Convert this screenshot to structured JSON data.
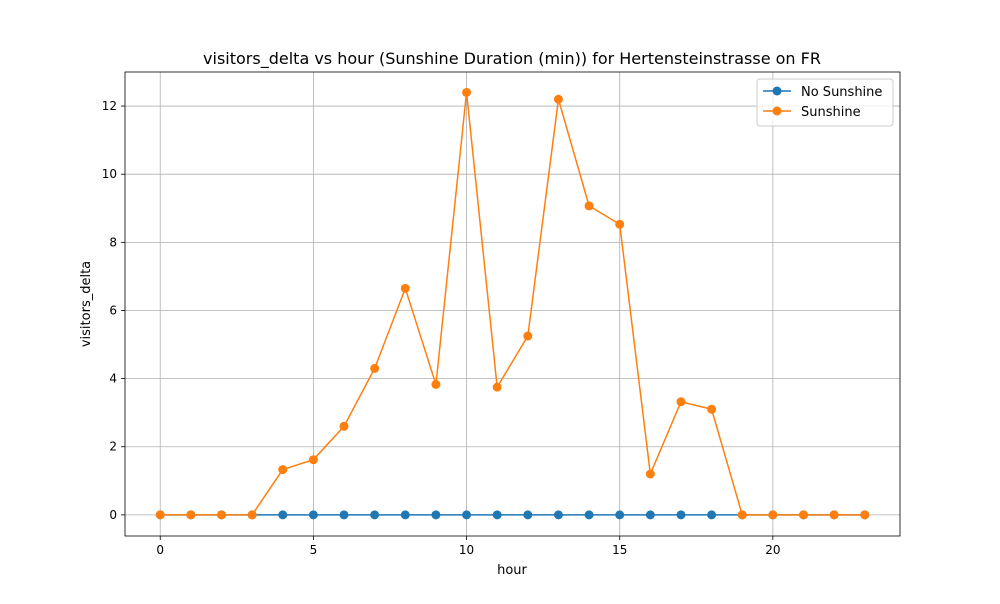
{
  "chart_data": {
    "type": "line",
    "title": "visitors_delta vs hour (Sunshine Duration (min)) for Hertensteinstrasse on FR",
    "xlabel": "hour",
    "ylabel": "visitors_delta",
    "xlim": [
      -1.15,
      24.15
    ],
    "ylim": [
      -0.62,
      13.0
    ],
    "xticks": [
      0,
      5,
      10,
      15,
      20
    ],
    "yticks": [
      0,
      2,
      4,
      6,
      8,
      10,
      12
    ],
    "grid": true,
    "legend_position": "top-right",
    "series": [
      {
        "name": "No Sunshine",
        "color": "#1f77b4",
        "x": [
          0,
          1,
          2,
          3,
          4,
          5,
          6,
          7,
          8,
          9,
          10,
          11,
          12,
          13,
          14,
          15,
          16,
          17,
          18,
          19,
          20,
          21,
          22,
          23
        ],
        "y": [
          0,
          0,
          0,
          0,
          0,
          0,
          0,
          0,
          0,
          0,
          0,
          0,
          0,
          0,
          0,
          0,
          0,
          0,
          0,
          0,
          0,
          0,
          0,
          0
        ]
      },
      {
        "name": "Sunshine",
        "color": "#ff7f0e",
        "x": [
          0,
          1,
          2,
          3,
          4,
          5,
          6,
          7,
          8,
          9,
          10,
          11,
          12,
          13,
          14,
          15,
          16,
          17,
          18,
          19,
          20,
          21,
          22,
          23
        ],
        "y": [
          0,
          0,
          0,
          0,
          1.33,
          1.62,
          2.6,
          4.3,
          6.65,
          3.83,
          12.4,
          3.75,
          5.25,
          12.2,
          9.07,
          8.53,
          1.2,
          3.32,
          3.1,
          0,
          0,
          0,
          0,
          0
        ]
      }
    ]
  }
}
